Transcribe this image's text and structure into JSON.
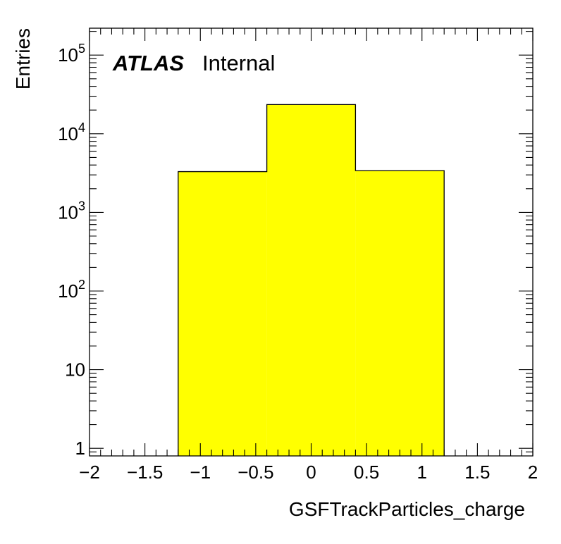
{
  "chart_data": {
    "type": "bar",
    "style": "histogram",
    "xlabel": "GSFTrackParticles_charge",
    "ylabel": "Entries",
    "xlim": [
      -2,
      2
    ],
    "ylim": [
      0.8,
      220000
    ],
    "yscale": "log",
    "fill_color": "#ffff00",
    "edge_color": "#000000",
    "bins": [
      {
        "x0": -1.2,
        "x1": -0.4,
        "value": 3300
      },
      {
        "x0": -0.4,
        "x1": 0.4,
        "value": 23500
      },
      {
        "x0": 0.4,
        "x1": 1.2,
        "value": 3400
      }
    ],
    "x_ticks": [
      {
        "value": -2,
        "label": "−2"
      },
      {
        "value": -1.5,
        "label": "−1.5"
      },
      {
        "value": -1,
        "label": "−1"
      },
      {
        "value": -0.5,
        "label": "−0.5"
      },
      {
        "value": 0,
        "label": "0"
      },
      {
        "value": 0.5,
        "label": "0.5"
      },
      {
        "value": 1,
        "label": "1"
      },
      {
        "value": 1.5,
        "label": "1.5"
      },
      {
        "value": 2,
        "label": "2"
      }
    ],
    "y_ticks": [
      {
        "value": 1,
        "base": "1",
        "exp": ""
      },
      {
        "value": 10,
        "base": "10",
        "exp": ""
      },
      {
        "value": 100,
        "base": "10",
        "exp": "2"
      },
      {
        "value": 1000,
        "base": "10",
        "exp": "3"
      },
      {
        "value": 10000,
        "base": "10",
        "exp": "4"
      },
      {
        "value": 100000,
        "base": "10",
        "exp": "5"
      }
    ],
    "annotation": {
      "bold": "ATLAS",
      "text": "Internal"
    },
    "grid": false,
    "legend": "none"
  }
}
